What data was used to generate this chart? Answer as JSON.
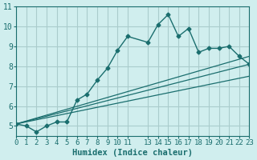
{
  "xlabel": "Humidex (Indice chaleur)",
  "ylabel": "",
  "bg_color": "#d0eeee",
  "grid_color": "#aacccc",
  "line_color": "#1a6e6e",
  "xlim": [
    0,
    23
  ],
  "ylim": [
    4.5,
    11
  ],
  "yticks": [
    5,
    6,
    7,
    8,
    9,
    10,
    11
  ],
  "xticks": [
    0,
    1,
    2,
    3,
    4,
    5,
    6,
    7,
    8,
    9,
    10,
    11,
    13,
    14,
    15,
    16,
    17,
    18,
    19,
    20,
    21,
    22,
    23
  ],
  "line1_x": [
    0,
    1,
    2,
    3,
    4,
    5,
    6,
    7,
    8,
    9,
    10,
    11,
    13,
    14,
    15,
    16,
    17,
    18,
    19,
    20,
    21,
    22,
    23
  ],
  "line1_y": [
    5.1,
    5.0,
    4.7,
    5.0,
    5.2,
    5.2,
    6.3,
    6.6,
    7.3,
    7.9,
    8.8,
    9.5,
    9.2,
    10.1,
    10.6,
    9.5,
    9.9,
    8.7,
    8.9,
    8.9,
    9.0,
    8.5,
    8.1
  ],
  "line2_x": [
    0,
    23
  ],
  "line2_y": [
    5.1,
    8.1
  ],
  "line3_x": [
    0,
    23
  ],
  "line3_y": [
    5.1,
    7.5
  ],
  "line4_x": [
    0,
    23
  ],
  "line4_y": [
    5.1,
    8.5
  ]
}
